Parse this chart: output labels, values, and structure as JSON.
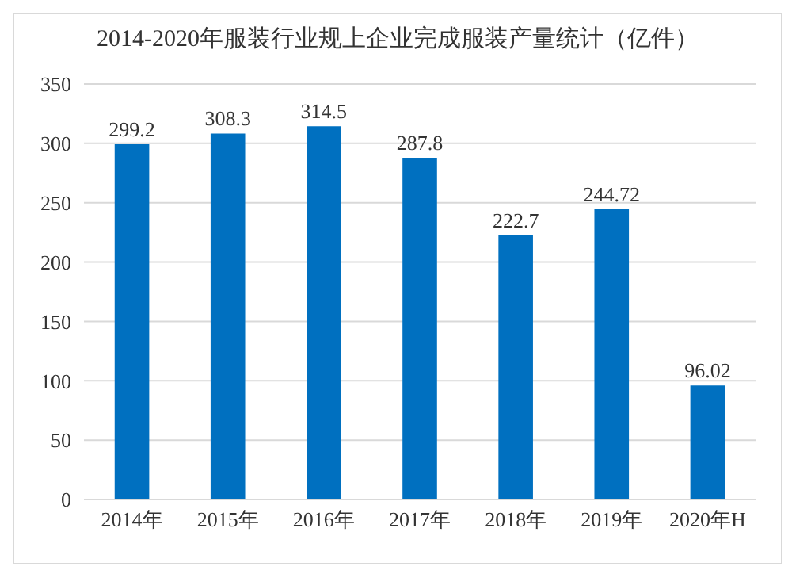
{
  "chart_data": {
    "type": "bar",
    "title": "2014-2020年服装行业规上企业完成服装产量统计（亿件）",
    "categories": [
      "2014年",
      "2015年",
      "2016年",
      "2017年",
      "2018年",
      "2019年",
      "2020年H"
    ],
    "values": [
      299.2,
      308.3,
      314.5,
      287.8,
      222.7,
      244.72,
      96.02
    ],
    "color": "#0070c0",
    "ylim": [
      0,
      350
    ],
    "yticks": [
      0,
      50,
      100,
      150,
      200,
      250,
      300,
      350
    ],
    "grid": "y",
    "data_labels": true
  }
}
